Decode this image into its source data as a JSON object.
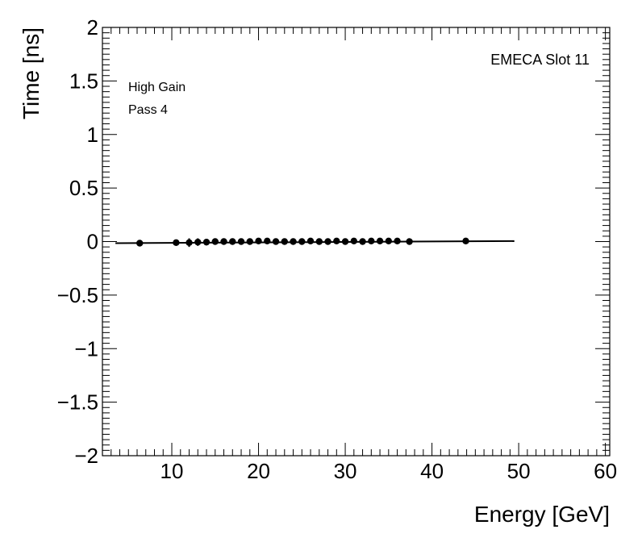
{
  "chart_data": {
    "type": "scatter",
    "xlabel": "Energy [GeV]",
    "ylabel": "Time [ns]",
    "xlim": [
      2,
      60.5
    ],
    "ylim": [
      -2,
      2
    ],
    "x_ticks": [
      10,
      20,
      30,
      40,
      50,
      60
    ],
    "y_ticks": [
      -2,
      -1.5,
      -1,
      -0.5,
      0,
      0.5,
      1,
      1.5,
      2
    ],
    "y_tick_labels": [
      "−2",
      "−1.5",
      "−1",
      "−0.5",
      "0",
      "0.5",
      "1",
      "1.5",
      "2"
    ],
    "grid": false,
    "annotations": {
      "slot": "EMECA Slot 11",
      "gain": "High Gain",
      "pass": "Pass 4"
    },
    "fit_line": {
      "x": [
        3.5,
        49.5
      ],
      "y": [
        -0.015,
        0.005
      ]
    },
    "points": {
      "x": [
        6.3,
        10.5,
        12.0,
        13.0,
        14.0,
        15.0,
        16.0,
        17.0,
        18.0,
        19.0,
        20.0,
        21.0,
        22.0,
        23.0,
        24.0,
        25.0,
        26.0,
        27.0,
        28.0,
        29.0,
        30.0,
        31.0,
        32.0,
        33.0,
        34.0,
        35.0,
        36.0,
        37.4,
        43.9
      ],
      "y": [
        -0.015,
        -0.01,
        -0.01,
        -0.005,
        -0.005,
        0.0,
        0.0,
        0.0,
        0.0,
        0.0,
        0.005,
        0.005,
        0.0,
        0.0,
        0.0,
        0.0,
        0.005,
        0.0,
        0.0,
        0.005,
        0.0,
        0.005,
        0.0,
        0.005,
        0.005,
        0.005,
        0.005,
        0.0,
        0.005
      ],
      "yerr": [
        0.0,
        0.0,
        0.04,
        0.035,
        0.03,
        0.03,
        0.03,
        0.03,
        0.03,
        0.025,
        0.025,
        0.025,
        0.02,
        0.02,
        0.02,
        0.02,
        0.02,
        0.02,
        0.02,
        0.02,
        0.02,
        0.02,
        0.02,
        0.025,
        0.025,
        0.02,
        0.02,
        0.0,
        0.0
      ]
    }
  }
}
